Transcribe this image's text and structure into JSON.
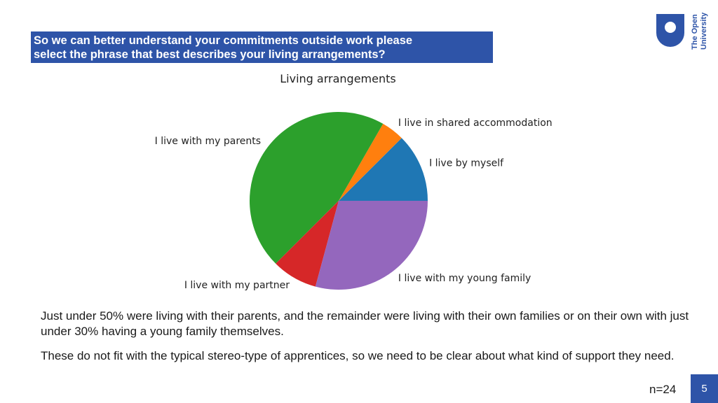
{
  "header": {
    "line1": "So we can better understand your commitments outside work please",
    "line2": "select the phrase that best describes your living arrangements?"
  },
  "logo": {
    "text_line1": "The Open",
    "text_line2": "University",
    "color": "#2e54a8"
  },
  "chart_data": {
    "type": "pie",
    "title": "Living arrangements",
    "categories": [
      "I live by myself",
      "I live in shared accommodation",
      "I live with my parents",
      "I live with my partner",
      "I live with my young family"
    ],
    "values": [
      12.5,
      4.2,
      45.8,
      8.3,
      29.2
    ],
    "colors": [
      "#1f77b4",
      "#ff7f0e",
      "#2ca02c",
      "#d62728",
      "#9467bd"
    ],
    "start_angle_deg": 0,
    "direction": "counterclockwise"
  },
  "body": {
    "p1": "Just under 50% were living with their parents, and the remainder were living with their own families or on their own with just under 30% having a young family themselves.",
    "p2": "These do not fit with the typical stereo-type of apprentices, so we need to be clear about what kind of support they need."
  },
  "footer": {
    "sample_size": "n=24",
    "page_number": "5"
  }
}
